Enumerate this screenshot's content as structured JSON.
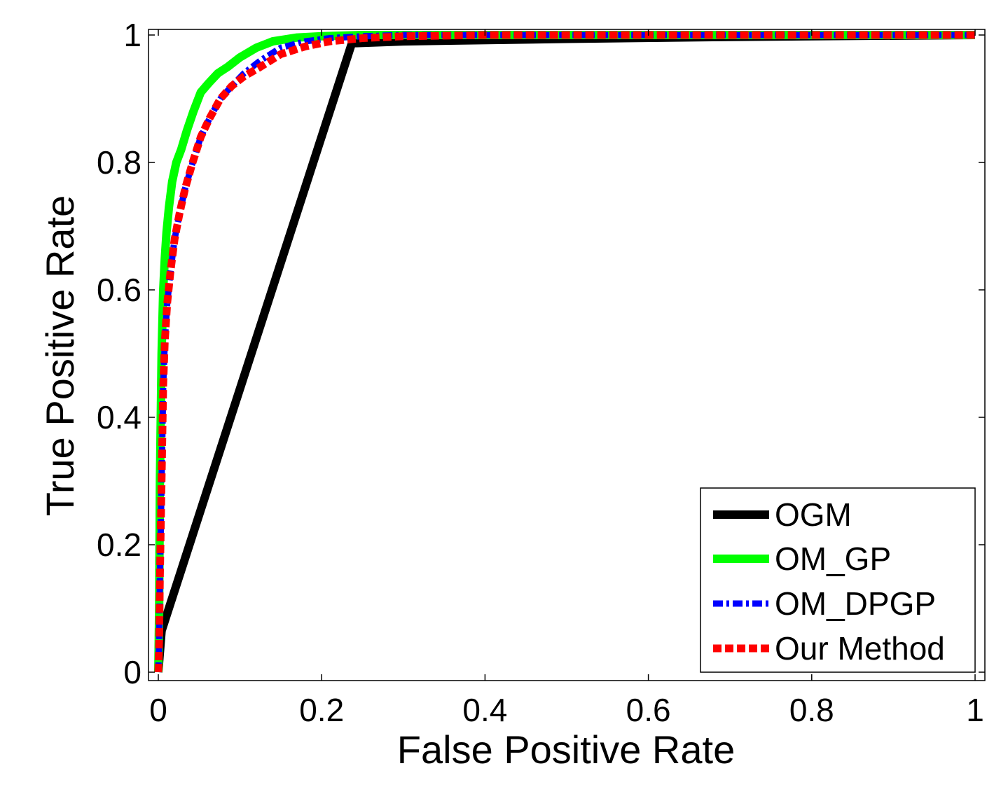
{
  "chart_data": {
    "type": "line",
    "title": "",
    "xlabel": "False Positive Rate",
    "ylabel": "True Positive Rate",
    "xlim": [
      0,
      1
    ],
    "ylim": [
      0,
      1
    ],
    "xticks": [
      0,
      0.2,
      0.4,
      0.6,
      0.8,
      1
    ],
    "xtick_labels": [
      "0",
      "0.2",
      "0.4",
      "0.6",
      "0.8",
      "1"
    ],
    "yticks": [
      0,
      0.2,
      0.4,
      0.6,
      0.8,
      1
    ],
    "ytick_labels": [
      "0",
      "0.2",
      "0.4",
      "0.6",
      "0.8",
      "1"
    ],
    "grid": false,
    "legend_position": "bottom-right",
    "series": [
      {
        "name": "OGM",
        "color": "#000000",
        "style": "solid",
        "x": [
          0,
          0.004,
          0.237,
          0.3,
          0.5,
          0.7,
          1
        ],
        "y": [
          0,
          0.065,
          0.987,
          0.99,
          0.994,
          0.997,
          1
        ]
      },
      {
        "name": "OM_GP",
        "color": "#00ff00",
        "style": "solid",
        "x": [
          0,
          0.001,
          0.002,
          0.004,
          0.006,
          0.008,
          0.01,
          0.013,
          0.017,
          0.022,
          0.028,
          0.035,
          0.043,
          0.052,
          0.062,
          0.073,
          0.085,
          0.1,
          0.12,
          0.14,
          0.17,
          0.2,
          0.25,
          0.3,
          0.4,
          0.5,
          0.6,
          0.7,
          0.8,
          0.9,
          1
        ],
        "y": [
          0,
          0.1,
          0.3,
          0.5,
          0.6,
          0.65,
          0.69,
          0.73,
          0.77,
          0.8,
          0.82,
          0.85,
          0.88,
          0.91,
          0.925,
          0.94,
          0.95,
          0.965,
          0.98,
          0.99,
          0.996,
          0.998,
          1,
          1,
          1,
          1,
          1,
          1,
          1,
          1,
          1
        ]
      },
      {
        "name": "OM_DPGP",
        "color": "#0000ff",
        "style": "dashdot",
        "x": [
          0,
          0.001,
          0.002,
          0.004,
          0.006,
          0.008,
          0.011,
          0.015,
          0.02,
          0.026,
          0.033,
          0.042,
          0.052,
          0.063,
          0.076,
          0.09,
          0.105,
          0.125,
          0.15,
          0.18,
          0.21,
          0.25,
          0.3,
          0.4,
          0.5,
          0.6,
          0.7,
          0.8,
          0.9,
          1
        ],
        "y": [
          0,
          0.05,
          0.15,
          0.3,
          0.45,
          0.52,
          0.58,
          0.63,
          0.68,
          0.72,
          0.76,
          0.8,
          0.84,
          0.87,
          0.9,
          0.92,
          0.94,
          0.96,
          0.98,
          0.99,
          0.995,
          0.998,
          1,
          1,
          1,
          1,
          1,
          1,
          1,
          1
        ]
      },
      {
        "name": "Our Method",
        "color": "#ff0000",
        "style": "dashed",
        "x": [
          0,
          0.001,
          0.002,
          0.004,
          0.006,
          0.008,
          0.011,
          0.015,
          0.02,
          0.026,
          0.033,
          0.042,
          0.052,
          0.063,
          0.076,
          0.09,
          0.105,
          0.125,
          0.15,
          0.18,
          0.21,
          0.25,
          0.3,
          0.4,
          0.5,
          0.6,
          0.7,
          0.8,
          0.9,
          1
        ],
        "y": [
          0,
          0.05,
          0.15,
          0.3,
          0.45,
          0.52,
          0.58,
          0.63,
          0.68,
          0.72,
          0.76,
          0.8,
          0.84,
          0.87,
          0.9,
          0.92,
          0.935,
          0.95,
          0.97,
          0.982,
          0.99,
          0.995,
          0.998,
          1,
          1,
          1,
          1,
          1,
          1,
          1
        ]
      }
    ]
  }
}
